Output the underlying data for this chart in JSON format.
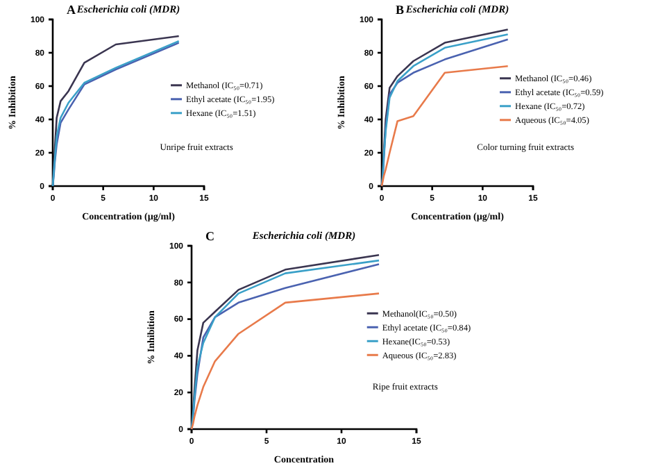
{
  "chart_data": [
    {
      "type": "line",
      "title": "Escherichia coli (MDR)",
      "xlabel": "Concentration  (µg/ml)",
      "ylabel": "% Inhibition",
      "annotations": [
        "A",
        "Unripe fruit extracts"
      ],
      "x": [
        0,
        0.1,
        0.2,
        0.39,
        0.78,
        1.56,
        3.13,
        6.25,
        12.5
      ],
      "xlim": [
        0,
        15
      ],
      "xticks": [
        0,
        5,
        10,
        15
      ],
      "ylim": [
        0,
        100
      ],
      "yticks": [
        0,
        20,
        40,
        60,
        80,
        100
      ],
      "legend": "right",
      "series": [
        {
          "name": "Methanol  (IC₅₀=0.71)",
          "color": "#3a3550",
          "values": [
            0,
            12,
            22,
            41,
            51,
            57,
            74,
            85,
            90
          ]
        },
        {
          "name": "Ethyl acetate  (IC₅₀=1.95)",
          "color": "#4a62b0",
          "values": [
            0,
            6,
            14,
            25,
            38,
            46,
            61,
            70,
            86
          ]
        },
        {
          "name": "Hexane  (IC₅₀=1.51)",
          "color": "#3aa0c8",
          "values": [
            0,
            8,
            16,
            30,
            41,
            50,
            62,
            71,
            87
          ]
        }
      ]
    },
    {
      "type": "line",
      "title": "Escherichia coli (MDR)",
      "xlabel": "Concentration  (µg/ml)",
      "ylabel": "% Inhibition",
      "annotations": [
        "B",
        "Color turning fruit extracts"
      ],
      "x": [
        0,
        0.1,
        0.2,
        0.39,
        0.78,
        1.56,
        3.13,
        6.25,
        12.5
      ],
      "xlim": [
        0,
        15
      ],
      "xticks": [
        0,
        5,
        10,
        15
      ],
      "ylim": [
        0,
        100
      ],
      "yticks": [
        0,
        20,
        40,
        60,
        80,
        100
      ],
      "legend": "right",
      "series": [
        {
          "name": "Methanol  (IC₅₀=0.46)",
          "color": "#3a3550",
          "values": [
            0,
            8,
            20,
            40,
            59,
            66,
            75,
            86,
            94
          ]
        },
        {
          "name": "Ethyl acetate  (IC₅₀=0.59)",
          "color": "#4a62b0",
          "values": [
            0,
            5,
            15,
            35,
            55,
            62,
            68,
            76,
            88
          ]
        },
        {
          "name": "Hexane  (IC₅₀=0.72)",
          "color": "#3aa0c8",
          "values": [
            0,
            6,
            18,
            33,
            53,
            63,
            72,
            83,
            91
          ]
        },
        {
          "name": "Aqueous  (IC₅₀=4.05)",
          "color": "#e87a4a",
          "values": [
            0,
            3,
            6,
            10,
            20,
            39,
            42,
            68,
            72
          ]
        }
      ]
    },
    {
      "type": "line",
      "title": "Escherichia coli (MDR)",
      "xlabel": "Concentration",
      "ylabel": "% Inhibition",
      "annotations": [
        "C",
        "Ripe fruit extracts"
      ],
      "x": [
        0,
        0.1,
        0.2,
        0.39,
        0.78,
        1.56,
        3.13,
        6.25,
        12.5
      ],
      "xlim": [
        0,
        15
      ],
      "xticks": [
        0,
        5,
        10,
        15
      ],
      "ylim": [
        0,
        100
      ],
      "yticks": [
        0,
        20,
        40,
        60,
        80,
        100
      ],
      "legend": "right",
      "series": [
        {
          "name": "Methanol(IC₅₀=0.50)",
          "color": "#3a3550",
          "values": [
            0,
            10,
            22,
            43,
            58,
            64,
            76,
            87,
            95
          ]
        },
        {
          "name": "Ethyl acetate (IC₅₀=0.84)",
          "color": "#4a62b0",
          "values": [
            0,
            6,
            16,
            30,
            50,
            61,
            69,
            77,
            90
          ]
        },
        {
          "name": "Hexane(IC₅₀=0.53)",
          "color": "#3aa0c8",
          "values": [
            0,
            8,
            18,
            34,
            47,
            61,
            74,
            85,
            92
          ]
        },
        {
          "name": "Aqueous (IC₅₀=2.83)",
          "color": "#e87a4a",
          "values": [
            0,
            3,
            7,
            13,
            23,
            37,
            52,
            69,
            74
          ]
        }
      ]
    }
  ]
}
